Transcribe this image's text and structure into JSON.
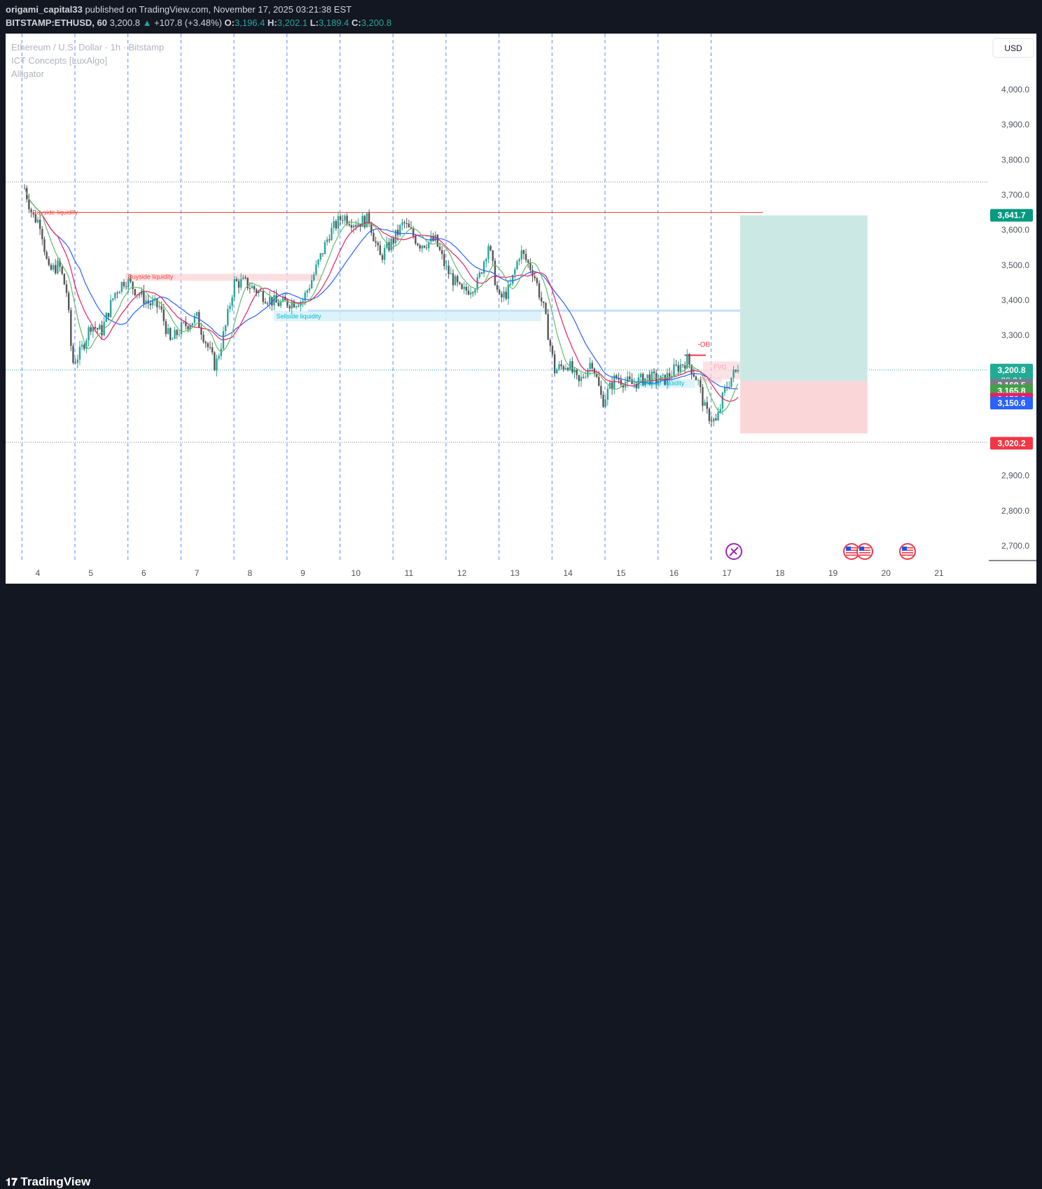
{
  "header": {
    "user": "origami_capital33",
    "published_text": "published on TradingView.com, November 17, 2025 03:21:38 EST",
    "symbol": "BITSTAMP:ETHUSD, 60",
    "last": "3,200.8",
    "change": "+107.8 (+3.48%)",
    "o_label": "O:",
    "o": "3,196.4",
    "h_label": "H:",
    "h": "3,202.1",
    "l_label": "L:",
    "l": "3,189.4",
    "c_label": "C:",
    "c": "3,200.8"
  },
  "legend": {
    "title": "Ethereum / U.S. Dollar · 1h · Bitstamp",
    "indicator1": "ICT Concepts [LuxAlgo]",
    "indicator2": "Alligator"
  },
  "currency_button": "USD",
  "footer": {
    "logo_text": "TradingView"
  },
  "colors": {
    "up": "#26a69a",
    "down": "#555555",
    "lips": "#66bb6a",
    "teeth": "#e91e63",
    "jaw": "#2962ff",
    "liquidity_buy": "#f44336",
    "liquidity_sell": "#00bcd4",
    "target_zone": "#cce8e4",
    "stop_zone": "#fbd6d9"
  },
  "chart_data": {
    "type": "candlestick",
    "symbol": "BITSTAMP:ETHUSD",
    "interval": "60",
    "x_ticks": [
      "4",
      "5",
      "6",
      "7",
      "8",
      "9",
      "10",
      "11",
      "12",
      "13",
      "14",
      "15",
      "16",
      "17",
      "18",
      "19",
      "20",
      "21"
    ],
    "y_ticks": [
      "4,000.0",
      "3,900.0",
      "3,800.0",
      "3,700.0",
      "3,600.0",
      "3,500.0",
      "3,400.0",
      "3,300.0",
      "3,200.0",
      "2,900.0",
      "2,800.0",
      "2,700.0"
    ],
    "ylim": [
      2670,
      4100
    ],
    "price_labels": [
      {
        "value": 3641.7,
        "text": "3,641.7",
        "color": "#089981"
      },
      {
        "value": 3200.8,
        "text": "3,200.8",
        "sub": "38:24",
        "color": "#22ab94"
      },
      {
        "value": 3169.5,
        "text": "3,169.5",
        "color": "#787b86"
      },
      {
        "value": 3165.8,
        "text": "3,165.8",
        "color": "#43a047"
      },
      {
        "value": 3153.8,
        "text": "3,153.8",
        "color": "#e91e63"
      },
      {
        "value": 3150.6,
        "text": "3,150.6",
        "color": "#2962ff"
      },
      {
        "value": 3020.2,
        "text": "3,020.2",
        "color": "#f23645"
      }
    ],
    "annotations": {
      "buyside_top": {
        "text": "Buyside liquidity",
        "price": 3650
      },
      "buyside_mid": {
        "text": "Buyside liquidity",
        "price_top": 3475,
        "price_bottom": 3455
      },
      "sellside_mid": {
        "text": "Sellside liquidity",
        "price_top": 3370,
        "price_bottom": 3340
      },
      "sellside_low": {
        "text": "Sellside liquidity",
        "price_top": 3175,
        "price_bottom": 3150
      },
      "ob": {
        "text": "-OB",
        "price": 3243
      },
      "fvg": {
        "text": "FVG",
        "price_top": 3225,
        "price_bottom": 3175
      },
      "fvg2": {
        "text": "FVG",
        "price_top": 3180,
        "price_bottom": 3165
      }
    },
    "position": {
      "entry": 3169.5,
      "target": 3641.7,
      "stop": 3020.2
    },
    "ohlc_last": {
      "open": 3196.4,
      "high": 3202.1,
      "low": 3189.4,
      "close": 3200.8
    },
    "close_path": [
      {
        "day": 3.75,
        "price": 3720
      },
      {
        "day": 3.9,
        "price": 3640
      },
      {
        "day": 4.05,
        "price": 3620
      },
      {
        "day": 4.2,
        "price": 3480
      },
      {
        "day": 4.4,
        "price": 3500
      },
      {
        "day": 4.55,
        "price": 3420
      },
      {
        "day": 4.65,
        "price": 3220
      },
      {
        "day": 4.8,
        "price": 3250
      },
      {
        "day": 5.0,
        "price": 3330
      },
      {
        "day": 5.2,
        "price": 3310
      },
      {
        "day": 5.45,
        "price": 3420
      },
      {
        "day": 5.65,
        "price": 3460
      },
      {
        "day": 5.9,
        "price": 3420
      },
      {
        "day": 6.1,
        "price": 3390
      },
      {
        "day": 6.3,
        "price": 3380
      },
      {
        "day": 6.5,
        "price": 3280
      },
      {
        "day": 6.7,
        "price": 3320
      },
      {
        "day": 7.0,
        "price": 3350
      },
      {
        "day": 7.2,
        "price": 3270
      },
      {
        "day": 7.35,
        "price": 3210
      },
      {
        "day": 7.55,
        "price": 3330
      },
      {
        "day": 7.7,
        "price": 3450
      },
      {
        "day": 7.9,
        "price": 3450
      },
      {
        "day": 8.2,
        "price": 3420
      },
      {
        "day": 8.5,
        "price": 3390
      },
      {
        "day": 8.8,
        "price": 3395
      },
      {
        "day": 9.0,
        "price": 3400
      },
      {
        "day": 9.2,
        "price": 3470
      },
      {
        "day": 9.5,
        "price": 3590
      },
      {
        "day": 9.75,
        "price": 3640
      },
      {
        "day": 10.0,
        "price": 3620
      },
      {
        "day": 10.25,
        "price": 3630
      },
      {
        "day": 10.45,
        "price": 3520
      },
      {
        "day": 10.7,
        "price": 3570
      },
      {
        "day": 10.9,
        "price": 3620
      },
      {
        "day": 11.2,
        "price": 3560
      },
      {
        "day": 11.5,
        "price": 3570
      },
      {
        "day": 11.7,
        "price": 3490
      },
      {
        "day": 12.0,
        "price": 3420
      },
      {
        "day": 12.3,
        "price": 3450
      },
      {
        "day": 12.5,
        "price": 3560
      },
      {
        "day": 12.7,
        "price": 3400
      },
      {
        "day": 12.9,
        "price": 3430
      },
      {
        "day": 13.1,
        "price": 3540
      },
      {
        "day": 13.35,
        "price": 3480
      },
      {
        "day": 13.55,
        "price": 3370
      },
      {
        "day": 13.75,
        "price": 3200
      },
      {
        "day": 14.0,
        "price": 3220
      },
      {
        "day": 14.2,
        "price": 3160
      },
      {
        "day": 14.45,
        "price": 3230
      },
      {
        "day": 14.65,
        "price": 3110
      },
      {
        "day": 14.9,
        "price": 3180
      },
      {
        "day": 15.2,
        "price": 3160
      },
      {
        "day": 15.5,
        "price": 3180
      },
      {
        "day": 15.8,
        "price": 3170
      },
      {
        "day": 16.0,
        "price": 3200
      },
      {
        "day": 16.25,
        "price": 3230
      },
      {
        "day": 16.45,
        "price": 3170
      },
      {
        "day": 16.6,
        "price": 3080
      },
      {
        "day": 16.8,
        "price": 3050
      },
      {
        "day": 16.95,
        "price": 3140
      },
      {
        "day": 17.1,
        "price": 3185
      },
      {
        "day": 17.22,
        "price": 3200.8
      }
    ]
  }
}
